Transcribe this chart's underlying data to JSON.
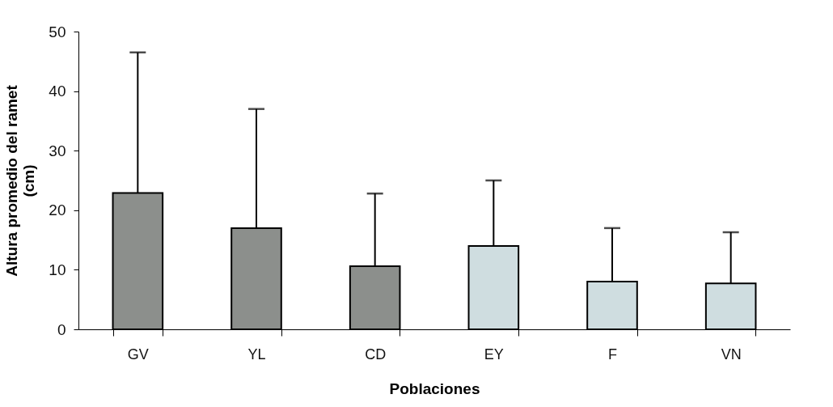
{
  "chart_data": {
    "type": "bar",
    "xlabel": "Poblaciones",
    "ylabel": "Altura promedio del ramet\n(cm)",
    "categories": [
      "GV",
      "YL",
      "CD",
      "EY",
      "F",
      "VN"
    ],
    "values": [
      22.9,
      17,
      10.6,
      14,
      8,
      7.7
    ],
    "errors": [
      [
        22.9,
        46.5
      ],
      [
        17,
        37
      ],
      [
        10.6,
        22.8
      ],
      [
        14,
        25
      ],
      [
        8,
        17
      ],
      [
        7.7,
        16.3
      ]
    ],
    "colors": [
      "#8c8f8c",
      "#8c8f8c",
      "#8c8f8c",
      "#cfdde0",
      "#cfdde0",
      "#cfdde0"
    ],
    "ylim": [
      0,
      50
    ],
    "yticks": [
      0,
      10,
      20,
      30,
      40,
      50
    ],
    "grid": false
  }
}
